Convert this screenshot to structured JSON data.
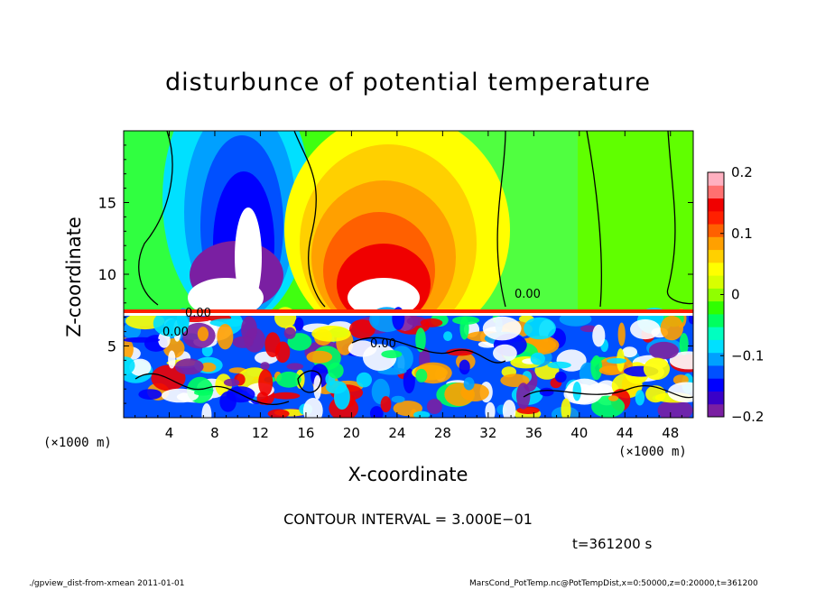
{
  "chart_data": {
    "type": "heatmap",
    "title": "disturbunce of potential temperature",
    "xlabel": "X-coordinate",
    "ylabel": "Z-coordinate",
    "x_unit": "(×1000 m)",
    "z_unit": "(×1000 m)",
    "xlim": [
      0,
      50
    ],
    "zlim": [
      0,
      20
    ],
    "x_ticks": [
      4,
      8,
      12,
      16,
      20,
      24,
      28,
      32,
      36,
      40,
      44,
      48
    ],
    "z_ticks": [
      5,
      10,
      15
    ],
    "colorbar": {
      "min": -0.2,
      "max": 0.2,
      "ticks": [
        0.2,
        0.1,
        0,
        -0.1,
        -0.2
      ],
      "tick_labels": [
        "0.2",
        "0.1",
        "0",
        "−0.1",
        "−0.2"
      ],
      "colors": [
        "#7a1fa2",
        "#3a00c8",
        "#0000ff",
        "#0050ff",
        "#00a0ff",
        "#00e0ff",
        "#00ffc0",
        "#00ff60",
        "#30ff00",
        "#90ff00",
        "#d8ff00",
        "#ffff00",
        "#ffd000",
        "#ffa000",
        "#ff6000",
        "#ff2000",
        "#f00000",
        "#ff7070",
        "#ffb0c0"
      ]
    },
    "contour_labels": [
      "0.00",
      "0.00",
      "0.00",
      "0.00"
    ],
    "contour_interval": "CONTOUR INTERVAL = 3.000E−01",
    "time": "t=361200 s"
  },
  "footer": {
    "left": "./gpview_dist-from-xmean  2011-01-01",
    "right": "MarsCond_PotTemp.nc@PotTempDist,x=0:50000,z=0:20000,t=361200"
  },
  "colors": {
    "background": "#ffffff",
    "frame": "#000000"
  }
}
